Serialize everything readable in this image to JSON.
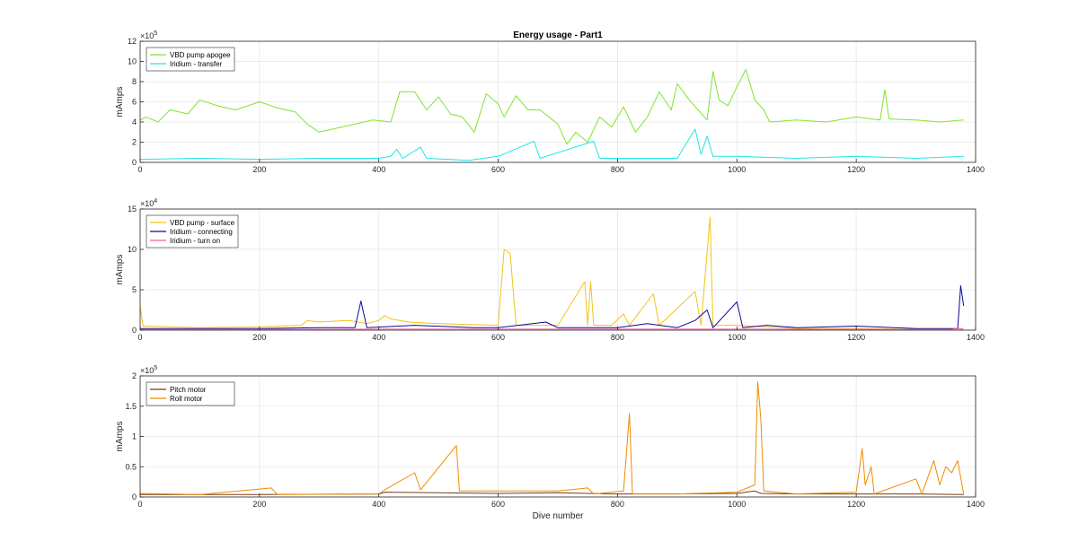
{
  "chart_data": [
    {
      "type": "line",
      "title": "Energy usage - Part1",
      "xlabel": "",
      "ylabel": "mAmps",
      "xlim": [
        0,
        1400
      ],
      "ylim": [
        0,
        1200000
      ],
      "x_ticks": [
        0,
        200,
        400,
        600,
        800,
        1000,
        1200,
        1400
      ],
      "y_ticks": [
        0,
        200000,
        400000,
        600000,
        800000,
        1000000,
        1200000
      ],
      "y_tick_labels": [
        "0",
        "2",
        "4",
        "6",
        "8",
        "10",
        "12"
      ],
      "y_exponent": "10",
      "y_exponent_power": "5",
      "grid": true,
      "legend_position": "top-left",
      "series": [
        {
          "name": "VBD pump apogee",
          "color": "#7fe52e",
          "points": [
            [
              0,
              420000
            ],
            [
              10,
              450000
            ],
            [
              30,
              400000
            ],
            [
              50,
              520000
            ],
            [
              80,
              480000
            ],
            [
              100,
              620000
            ],
            [
              130,
              560000
            ],
            [
              160,
              520000
            ],
            [
              200,
              600000
            ],
            [
              230,
              540000
            ],
            [
              260,
              500000
            ],
            [
              280,
              380000
            ],
            [
              300,
              300000
            ],
            [
              330,
              340000
            ],
            [
              360,
              380000
            ],
            [
              390,
              420000
            ],
            [
              420,
              400000
            ],
            [
              430,
              600000
            ],
            [
              435,
              700000
            ],
            [
              460,
              700000
            ],
            [
              480,
              520000
            ],
            [
              500,
              650000
            ],
            [
              520,
              480000
            ],
            [
              540,
              450000
            ],
            [
              560,
              300000
            ],
            [
              580,
              680000
            ],
            [
              600,
              580000
            ],
            [
              610,
              450000
            ],
            [
              630,
              660000
            ],
            [
              650,
              520000
            ],
            [
              670,
              520000
            ],
            [
              700,
              380000
            ],
            [
              715,
              180000
            ],
            [
              730,
              300000
            ],
            [
              750,
              200000
            ],
            [
              770,
              450000
            ],
            [
              790,
              350000
            ],
            [
              810,
              550000
            ],
            [
              830,
              300000
            ],
            [
              850,
              450000
            ],
            [
              870,
              700000
            ],
            [
              890,
              520000
            ],
            [
              900,
              780000
            ],
            [
              920,
              620000
            ],
            [
              935,
              520000
            ],
            [
              950,
              420000
            ],
            [
              960,
              900000
            ],
            [
              970,
              620000
            ],
            [
              985,
              560000
            ],
            [
              1000,
              750000
            ],
            [
              1015,
              920000
            ],
            [
              1030,
              620000
            ],
            [
              1045,
              520000
            ],
            [
              1055,
              400000
            ],
            [
              1100,
              420000
            ],
            [
              1150,
              400000
            ],
            [
              1200,
              450000
            ],
            [
              1240,
              420000
            ],
            [
              1248,
              720000
            ],
            [
              1255,
              430000
            ],
            [
              1300,
              420000
            ],
            [
              1340,
              400000
            ],
            [
              1380,
              420000
            ]
          ]
        },
        {
          "name": "Iridium - transfer",
          "color": "#1ee6e6",
          "points": [
            [
              0,
              30000
            ],
            [
              100,
              40000
            ],
            [
              200,
              30000
            ],
            [
              300,
              40000
            ],
            [
              400,
              40000
            ],
            [
              420,
              60000
            ],
            [
              430,
              130000
            ],
            [
              440,
              40000
            ],
            [
              470,
              150000
            ],
            [
              480,
              40000
            ],
            [
              550,
              20000
            ],
            [
              600,
              60000
            ],
            [
              660,
              210000
            ],
            [
              670,
              40000
            ],
            [
              760,
              210000
            ],
            [
              770,
              40000
            ],
            [
              900,
              40000
            ],
            [
              930,
              330000
            ],
            [
              940,
              80000
            ],
            [
              950,
              260000
            ],
            [
              960,
              60000
            ],
            [
              1000,
              60000
            ],
            [
              1100,
              40000
            ],
            [
              1200,
              60000
            ],
            [
              1300,
              40000
            ],
            [
              1380,
              60000
            ]
          ]
        }
      ]
    },
    {
      "type": "line",
      "title": "",
      "xlabel": "",
      "ylabel": "mAmps",
      "xlim": [
        0,
        1400
      ],
      "ylim": [
        0,
        150000
      ],
      "x_ticks": [
        0,
        200,
        400,
        600,
        800,
        1000,
        1200,
        1400
      ],
      "y_ticks": [
        0,
        50000,
        100000,
        150000
      ],
      "y_tick_labels": [
        "0",
        "5",
        "10",
        "15"
      ],
      "y_exponent": "10",
      "y_exponent_power": "4",
      "grid": true,
      "legend_position": "top-left",
      "series": [
        {
          "name": "VBD pump - surface",
          "color": "#f0c419",
          "points": [
            [
              0,
              30000
            ],
            [
              5,
              5000
            ],
            [
              50,
              4000
            ],
            [
              100,
              3000
            ],
            [
              200,
              4000
            ],
            [
              270,
              6000
            ],
            [
              280,
              12000
            ],
            [
              300,
              10000
            ],
            [
              350,
              12000
            ],
            [
              380,
              8000
            ],
            [
              400,
              12000
            ],
            [
              410,
              18000
            ],
            [
              420,
              14000
            ],
            [
              450,
              10000
            ],
            [
              500,
              8000
            ],
            [
              600,
              6000
            ],
            [
              610,
              100000
            ],
            [
              620,
              95000
            ],
            [
              630,
              6000
            ],
            [
              700,
              6000
            ],
            [
              745,
              60000
            ],
            [
              750,
              6000
            ],
            [
              755,
              60000
            ],
            [
              760,
              6000
            ],
            [
              790,
              6000
            ],
            [
              810,
              20000
            ],
            [
              820,
              6000
            ],
            [
              860,
              45000
            ],
            [
              870,
              6000
            ],
            [
              930,
              48000
            ],
            [
              940,
              6000
            ],
            [
              955,
              140000
            ],
            [
              960,
              6000
            ],
            [
              1000,
              6000
            ],
            [
              1050,
              4000
            ],
            [
              1100,
              2000
            ],
            [
              1200,
              2000
            ],
            [
              1300,
              1000
            ],
            [
              1380,
              1000
            ]
          ]
        },
        {
          "name": "Iridium - connecting",
          "color": "#0a0a96",
          "points": [
            [
              0,
              2000
            ],
            [
              100,
              2000
            ],
            [
              200,
              2000
            ],
            [
              300,
              3000
            ],
            [
              360,
              3000
            ],
            [
              370,
              36000
            ],
            [
              380,
              3000
            ],
            [
              460,
              6000
            ],
            [
              560,
              3000
            ],
            [
              600,
              3000
            ],
            [
              680,
              10000
            ],
            [
              700,
              3000
            ],
            [
              800,
              3000
            ],
            [
              850,
              8000
            ],
            [
              900,
              3000
            ],
            [
              930,
              12000
            ],
            [
              950,
              25000
            ],
            [
              960,
              3000
            ],
            [
              1000,
              35000
            ],
            [
              1010,
              3000
            ],
            [
              1050,
              6000
            ],
            [
              1100,
              3000
            ],
            [
              1200,
              5000
            ],
            [
              1300,
              2000
            ],
            [
              1370,
              2000
            ],
            [
              1375,
              55000
            ],
            [
              1380,
              30000
            ]
          ]
        },
        {
          "name": "Iridium - turn on",
          "color": "#ff5aa8",
          "points": [
            [
              0,
              1000
            ],
            [
              200,
              1000
            ],
            [
              400,
              1200
            ],
            [
              600,
              1200
            ],
            [
              800,
              1200
            ],
            [
              1000,
              1200
            ],
            [
              1200,
              1000
            ],
            [
              1360,
              1000
            ],
            [
              1370,
              2500
            ],
            [
              1380,
              1000
            ]
          ]
        }
      ]
    },
    {
      "type": "line",
      "title": "",
      "xlabel": "Dive number",
      "ylabel": "mAmps",
      "xlim": [
        0,
        1400
      ],
      "ylim": [
        0,
        200000
      ],
      "x_ticks": [
        0,
        200,
        400,
        600,
        800,
        1000,
        1200,
        1400
      ],
      "y_ticks": [
        0,
        50000,
        100000,
        150000,
        200000
      ],
      "y_tick_labels": [
        "0",
        "0.5",
        "1",
        "1.5",
        "2"
      ],
      "y_exponent": "10",
      "y_exponent_power": "5",
      "grid": true,
      "legend_position": "top-left",
      "series": [
        {
          "name": "Pitch motor",
          "color": "#7a3b10",
          "points": [
            [
              0,
              4000
            ],
            [
              200,
              4000
            ],
            [
              400,
              5000
            ],
            [
              410,
              8000
            ],
            [
              500,
              7000
            ],
            [
              600,
              6000
            ],
            [
              700,
              7000
            ],
            [
              800,
              5000
            ],
            [
              900,
              5000
            ],
            [
              1000,
              6000
            ],
            [
              1030,
              10000
            ],
            [
              1040,
              6000
            ],
            [
              1100,
              5000
            ],
            [
              1200,
              5000
            ],
            [
              1300,
              5000
            ],
            [
              1380,
              4000
            ]
          ]
        },
        {
          "name": "Roll motor",
          "color": "#f08c00",
          "points": [
            [
              0,
              6000
            ],
            [
              100,
              4000
            ],
            [
              220,
              15000
            ],
            [
              230,
              4000
            ],
            [
              400,
              5000
            ],
            [
              410,
              12000
            ],
            [
              460,
              40000
            ],
            [
              470,
              12000
            ],
            [
              530,
              85000
            ],
            [
              535,
              10000
            ],
            [
              600,
              10000
            ],
            [
              700,
              10000
            ],
            [
              750,
              15000
            ],
            [
              760,
              5000
            ],
            [
              810,
              10000
            ],
            [
              820,
              138000
            ],
            [
              825,
              5000
            ],
            [
              900,
              5000
            ],
            [
              1000,
              8000
            ],
            [
              1030,
              20000
            ],
            [
              1035,
              190000
            ],
            [
              1040,
              130000
            ],
            [
              1045,
              10000
            ],
            [
              1100,
              5000
            ],
            [
              1200,
              8000
            ],
            [
              1210,
              80000
            ],
            [
              1215,
              20000
            ],
            [
              1225,
              50000
            ],
            [
              1230,
              5000
            ],
            [
              1300,
              30000
            ],
            [
              1310,
              5000
            ],
            [
              1330,
              60000
            ],
            [
              1340,
              20000
            ],
            [
              1350,
              50000
            ],
            [
              1360,
              40000
            ],
            [
              1370,
              60000
            ],
            [
              1380,
              5000
            ]
          ]
        }
      ]
    }
  ]
}
